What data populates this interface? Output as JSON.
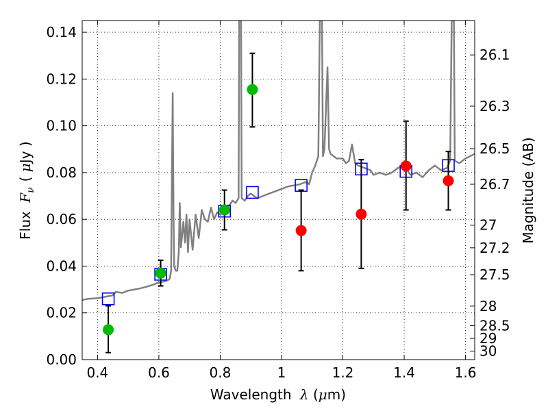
{
  "chart_data": {
    "type": "scatter",
    "xlabel_prefix": "Wavelength",
    "xlabel_symbol": "λ",
    "xlabel_unit_open": "(",
    "xlabel_unit_mu": "μ",
    "xlabel_unit_rest": "m)",
    "ylabel_prefix": "Flux",
    "ylabel_symbol": "F",
    "ylabel_subscript": "ν",
    "ylabel_unit_open": "(",
    "ylabel_unit_mu": "μ",
    "ylabel_unit_rest": "Jy )",
    "y2label": "Magnitude (AB)",
    "xlim": [
      0.35,
      1.63
    ],
    "ylim": [
      0.0,
      0.145
    ],
    "grid": true,
    "x_ticks": [
      0.4,
      0.6,
      0.8,
      1.0,
      1.2,
      1.4,
      1.6
    ],
    "x_tick_labels": [
      "0.4",
      "0.6",
      "0.8",
      "1",
      "1.2",
      "1.4",
      "1.6"
    ],
    "y_ticks": [
      0.0,
      0.02,
      0.04,
      0.06,
      0.08,
      0.1,
      0.12,
      0.14
    ],
    "y_tick_labels": [
      "0.00",
      "0.02",
      "0.04",
      "0.06",
      "0.08",
      "0.10",
      "0.12",
      "0.14"
    ],
    "mag_ticks": [
      {
        "label": "26.1",
        "flux": 0.1303
      },
      {
        "label": "26.3",
        "flux": 0.1084
      },
      {
        "label": "26.5",
        "flux": 0.0902
      },
      {
        "label": "26.7",
        "flux": 0.075
      },
      {
        "label": "27",
        "flux": 0.0575
      },
      {
        "label": "27.2",
        "flux": 0.0478
      },
      {
        "label": "27.5",
        "flux": 0.0363
      },
      {
        "label": "28",
        "flux": 0.0229
      },
      {
        "label": "28.5",
        "flux": 0.0145
      },
      {
        "label": "29",
        "flux": 0.0091
      },
      {
        "label": "30",
        "flux": 0.0036
      }
    ],
    "series": [
      {
        "marker": "circle",
        "color": "#00bb00",
        "points": [
          {
            "x": 0.435,
            "y": 0.0128,
            "yerr_low": 0.003,
            "yerr_high": 0.023
          },
          {
            "x": 0.606,
            "y": 0.037,
            "yerr_low": 0.0315,
            "yerr_high": 0.0425
          },
          {
            "x": 0.814,
            "y": 0.064,
            "yerr_low": 0.0555,
            "yerr_high": 0.0725
          },
          {
            "x": 0.905,
            "y": 0.1155,
            "yerr_low": 0.0995,
            "yerr_high": 0.131
          }
        ]
      },
      {
        "marker": "circle",
        "color": "#ff0000",
        "points": [
          {
            "x": 1.064,
            "y": 0.0552,
            "yerr_low": 0.038,
            "yerr_high": 0.0725
          },
          {
            "x": 1.26,
            "y": 0.0622,
            "yerr_low": 0.039,
            "yerr_high": 0.0855
          },
          {
            "x": 1.406,
            "y": 0.0828,
            "yerr_low": 0.064,
            "yerr_high": 0.102
          },
          {
            "x": 1.544,
            "y": 0.0765,
            "yerr_low": 0.064,
            "yerr_high": 0.089
          }
        ]
      },
      {
        "marker": "square",
        "color": "#0000ff",
        "points": [
          {
            "x": 0.435,
            "y": 0.026
          },
          {
            "x": 0.606,
            "y": 0.0365
          },
          {
            "x": 0.814,
            "y": 0.0635
          },
          {
            "x": 0.905,
            "y": 0.0715
          },
          {
            "x": 1.064,
            "y": 0.0745
          },
          {
            "x": 1.26,
            "y": 0.0815
          },
          {
            "x": 1.406,
            "y": 0.0805
          },
          {
            "x": 1.544,
            "y": 0.083
          }
        ]
      },
      {
        "marker": "line",
        "color": "#808080",
        "points": [
          [
            0.35,
            0.0255
          ],
          [
            0.37,
            0.026
          ],
          [
            0.39,
            0.0262
          ],
          [
            0.41,
            0.0265
          ],
          [
            0.43,
            0.027
          ],
          [
            0.45,
            0.0275
          ],
          [
            0.46,
            0.029
          ],
          [
            0.48,
            0.0285
          ],
          [
            0.5,
            0.0295
          ],
          [
            0.52,
            0.03
          ],
          [
            0.54,
            0.0305
          ],
          [
            0.56,
            0.0312
          ],
          [
            0.58,
            0.032
          ],
          [
            0.6,
            0.033
          ],
          [
            0.62,
            0.0335
          ],
          [
            0.63,
            0.034
          ],
          [
            0.635,
            0.0345
          ],
          [
            0.64,
            0.038
          ],
          [
            0.645,
            0.114
          ],
          [
            0.648,
            0.06
          ],
          [
            0.65,
            0.04
          ],
          [
            0.655,
            0.038
          ],
          [
            0.66,
            0.038
          ],
          [
            0.665,
            0.046
          ],
          [
            0.668,
            0.067
          ],
          [
            0.672,
            0.048
          ],
          [
            0.68,
            0.059
          ],
          [
            0.685,
            0.05
          ],
          [
            0.69,
            0.062
          ],
          [
            0.695,
            0.046
          ],
          [
            0.7,
            0.06
          ],
          [
            0.71,
            0.047
          ],
          [
            0.72,
            0.062
          ],
          [
            0.73,
            0.052
          ],
          [
            0.74,
            0.064
          ],
          [
            0.75,
            0.06
          ],
          [
            0.76,
            0.059
          ],
          [
            0.77,
            0.065
          ],
          [
            0.78,
            0.06
          ],
          [
            0.79,
            0.063
          ],
          [
            0.8,
            0.062
          ],
          [
            0.81,
            0.064
          ],
          [
            0.82,
            0.065
          ],
          [
            0.83,
            0.066
          ],
          [
            0.84,
            0.068
          ],
          [
            0.85,
            0.067
          ],
          [
            0.86,
            0.069
          ],
          [
            0.862,
            0.145
          ],
          [
            0.868,
            0.145
          ],
          [
            0.87,
            0.069
          ],
          [
            0.88,
            0.068
          ],
          [
            0.89,
            0.07
          ],
          [
            0.9,
            0.071
          ],
          [
            0.92,
            0.069
          ],
          [
            0.94,
            0.07
          ],
          [
            0.96,
            0.071
          ],
          [
            0.98,
            0.072
          ],
          [
            1.0,
            0.073
          ],
          [
            1.02,
            0.074
          ],
          [
            1.04,
            0.0745
          ],
          [
            1.06,
            0.075
          ],
          [
            1.08,
            0.076
          ],
          [
            1.09,
            0.075
          ],
          [
            1.1,
            0.08
          ],
          [
            1.11,
            0.083
          ],
          [
            1.12,
            0.087
          ],
          [
            1.125,
            0.145
          ],
          [
            1.132,
            0.145
          ],
          [
            1.135,
            0.087
          ],
          [
            1.14,
            0.09
          ],
          [
            1.15,
            0.125
          ],
          [
            1.155,
            0.09
          ],
          [
            1.16,
            0.088
          ],
          [
            1.18,
            0.086
          ],
          [
            1.2,
            0.086
          ],
          [
            1.21,
            0.084
          ],
          [
            1.22,
            0.085
          ],
          [
            1.23,
            0.092
          ],
          [
            1.24,
            0.084
          ],
          [
            1.25,
            0.083
          ],
          [
            1.27,
            0.082
          ],
          [
            1.29,
            0.081
          ],
          [
            1.3,
            0.079
          ],
          [
            1.32,
            0.08
          ],
          [
            1.34,
            0.079
          ],
          [
            1.36,
            0.08
          ],
          [
            1.38,
            0.082
          ],
          [
            1.4,
            0.083
          ],
          [
            1.42,
            0.079
          ],
          [
            1.44,
            0.08
          ],
          [
            1.46,
            0.078
          ],
          [
            1.48,
            0.081
          ],
          [
            1.5,
            0.083
          ],
          [
            1.52,
            0.081
          ],
          [
            1.54,
            0.082
          ],
          [
            1.55,
            0.085
          ],
          [
            1.555,
            0.145
          ],
          [
            1.562,
            0.145
          ],
          [
            1.565,
            0.085
          ],
          [
            1.58,
            0.084
          ],
          [
            1.6,
            0.086
          ],
          [
            1.615,
            0.087
          ],
          [
            1.63,
            0.088
          ]
        ]
      }
    ]
  }
}
